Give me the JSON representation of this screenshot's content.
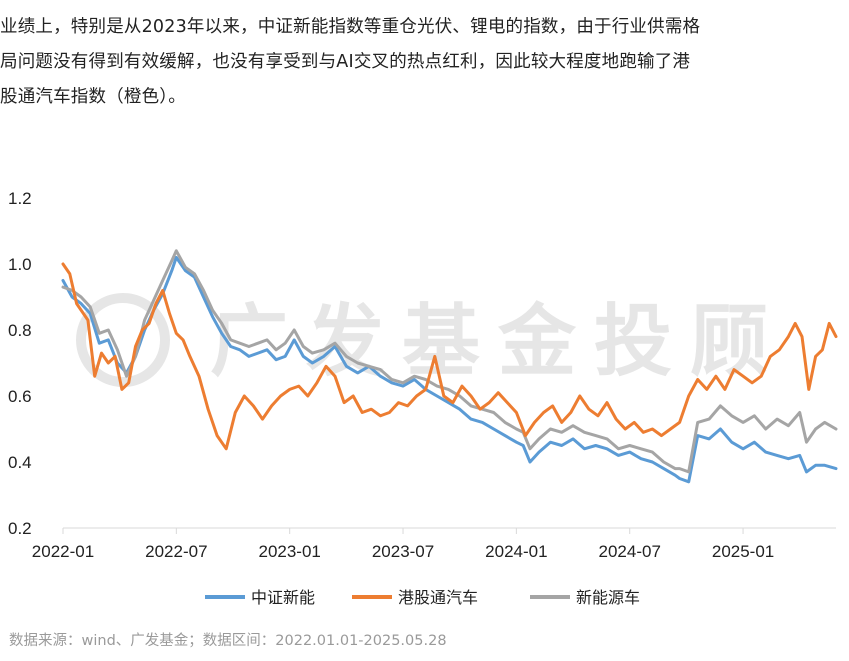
{
  "intro": {
    "lines": [
      "业绩上，特别是从2023年以来，中证新能指数等重仓光伏、锂电的指数，由于行业供需格",
      "局问题没有得到有效缓解，也没有享受到与AI交叉的热点红利，因此较大程度地跑输了港",
      "股通汽车指数（橙色）。"
    ]
  },
  "watermark": "广发基金投顾",
  "source": "数据来源：wind、广发基金；数据区间：2022.01.01-2025.05.28",
  "chart_data": {
    "type": "line",
    "ylim": [
      0.2,
      1.2
    ],
    "yticks": [
      "1.2",
      "1.0",
      "0.8",
      "0.6",
      "0.4",
      "0.2"
    ],
    "ytick_values": [
      1.2,
      1.0,
      0.8,
      0.6,
      0.4,
      0.2
    ],
    "xticks": [
      "2022-01",
      "2022-07",
      "2023-01",
      "2023-07",
      "2024-01",
      "2024-07",
      "2025-01"
    ],
    "xtick_values": [
      2022.0,
      2022.5,
      2023.0,
      2023.5,
      2024.0,
      2024.5,
      2025.0
    ],
    "xlim": [
      2022.0,
      2025.41
    ],
    "grid": false,
    "legend_position": "bottom",
    "series": [
      {
        "name": "中证新能",
        "color": "#5b9bd5",
        "x": [
          2022.0,
          2022.04,
          2022.08,
          2022.12,
          2022.16,
          2022.2,
          2022.24,
          2022.28,
          2022.32,
          2022.36,
          2022.4,
          2022.44,
          2022.48,
          2022.5,
          2022.54,
          2022.58,
          2022.62,
          2022.66,
          2022.7,
          2022.74,
          2022.78,
          2022.82,
          2022.86,
          2022.9,
          2022.94,
          2022.98,
          2023.02,
          2023.06,
          2023.1,
          2023.15,
          2023.2,
          2023.25,
          2023.3,
          2023.35,
          2023.4,
          2023.45,
          2023.5,
          2023.55,
          2023.6,
          2023.65,
          2023.7,
          2023.75,
          2023.8,
          2023.85,
          2023.9,
          2023.95,
          2024.0,
          2024.03,
          2024.06,
          2024.1,
          2024.15,
          2024.2,
          2024.25,
          2024.3,
          2024.35,
          2024.4,
          2024.45,
          2024.5,
          2024.55,
          2024.6,
          2024.65,
          2024.7,
          2024.72,
          2024.76,
          2024.8,
          2024.85,
          2024.9,
          2024.95,
          2025.0,
          2025.05,
          2025.1,
          2025.15,
          2025.2,
          2025.25,
          2025.28,
          2025.32,
          2025.36,
          2025.41
        ],
        "y": [
          0.95,
          0.9,
          0.88,
          0.85,
          0.76,
          0.77,
          0.7,
          0.67,
          0.72,
          0.8,
          0.86,
          0.91,
          0.98,
          1.02,
          0.98,
          0.96,
          0.9,
          0.84,
          0.79,
          0.75,
          0.74,
          0.72,
          0.73,
          0.74,
          0.71,
          0.72,
          0.77,
          0.72,
          0.7,
          0.72,
          0.75,
          0.69,
          0.67,
          0.69,
          0.66,
          0.64,
          0.63,
          0.65,
          0.62,
          0.6,
          0.58,
          0.56,
          0.53,
          0.52,
          0.5,
          0.48,
          0.46,
          0.45,
          0.4,
          0.43,
          0.46,
          0.45,
          0.47,
          0.44,
          0.45,
          0.44,
          0.42,
          0.43,
          0.41,
          0.4,
          0.38,
          0.36,
          0.35,
          0.34,
          0.48,
          0.47,
          0.5,
          0.46,
          0.44,
          0.46,
          0.43,
          0.42,
          0.41,
          0.42,
          0.37,
          0.39,
          0.39,
          0.38
        ]
      },
      {
        "name": "港股通汽车",
        "color": "#ed7d31",
        "x": [
          2022.0,
          2022.03,
          2022.06,
          2022.09,
          2022.11,
          2022.14,
          2022.17,
          2022.2,
          2022.23,
          2022.26,
          2022.29,
          2022.32,
          2022.35,
          2022.38,
          2022.41,
          2022.44,
          2022.47,
          2022.5,
          2022.53,
          2022.56,
          2022.6,
          2022.64,
          2022.68,
          2022.72,
          2022.76,
          2022.8,
          2022.84,
          2022.88,
          2022.92,
          2022.96,
          2023.0,
          2023.04,
          2023.08,
          2023.12,
          2023.16,
          2023.2,
          2023.24,
          2023.28,
          2023.32,
          2023.36,
          2023.4,
          2023.44,
          2023.48,
          2023.52,
          2023.56,
          2023.6,
          2023.64,
          2023.68,
          2023.72,
          2023.76,
          2023.8,
          2023.84,
          2023.88,
          2023.92,
          2023.96,
          2024.0,
          2024.04,
          2024.08,
          2024.12,
          2024.16,
          2024.2,
          2024.24,
          2024.28,
          2024.32,
          2024.36,
          2024.4,
          2024.44,
          2024.48,
          2024.52,
          2024.56,
          2024.6,
          2024.64,
          2024.68,
          2024.72,
          2024.76,
          2024.8,
          2024.84,
          2024.88,
          2024.92,
          2024.96,
          2025.0,
          2025.04,
          2025.08,
          2025.12,
          2025.16,
          2025.2,
          2025.23,
          2025.26,
          2025.29,
          2025.32,
          2025.35,
          2025.38,
          2025.41
        ],
        "y": [
          1.0,
          0.97,
          0.88,
          0.85,
          0.83,
          0.66,
          0.73,
          0.7,
          0.72,
          0.62,
          0.64,
          0.75,
          0.8,
          0.82,
          0.88,
          0.92,
          0.85,
          0.79,
          0.77,
          0.72,
          0.66,
          0.56,
          0.48,
          0.44,
          0.55,
          0.6,
          0.57,
          0.53,
          0.57,
          0.6,
          0.62,
          0.63,
          0.6,
          0.64,
          0.69,
          0.66,
          0.58,
          0.6,
          0.55,
          0.56,
          0.54,
          0.55,
          0.58,
          0.57,
          0.6,
          0.62,
          0.72,
          0.6,
          0.58,
          0.63,
          0.6,
          0.56,
          0.58,
          0.61,
          0.58,
          0.55,
          0.48,
          0.52,
          0.55,
          0.57,
          0.52,
          0.55,
          0.6,
          0.56,
          0.54,
          0.58,
          0.53,
          0.5,
          0.52,
          0.49,
          0.5,
          0.48,
          0.5,
          0.52,
          0.6,
          0.65,
          0.62,
          0.66,
          0.62,
          0.68,
          0.66,
          0.64,
          0.66,
          0.72,
          0.74,
          0.78,
          0.82,
          0.78,
          0.62,
          0.72,
          0.74,
          0.82,
          0.78
        ]
      },
      {
        "name": "新能源车",
        "color": "#a5a5a5",
        "x": [
          2022.0,
          2022.04,
          2022.08,
          2022.12,
          2022.16,
          2022.2,
          2022.24,
          2022.28,
          2022.32,
          2022.36,
          2022.4,
          2022.44,
          2022.48,
          2022.5,
          2022.54,
          2022.58,
          2022.62,
          2022.66,
          2022.7,
          2022.74,
          2022.78,
          2022.82,
          2022.86,
          2022.9,
          2022.94,
          2022.98,
          2023.02,
          2023.06,
          2023.1,
          2023.15,
          2023.2,
          2023.25,
          2023.3,
          2023.35,
          2023.4,
          2023.45,
          2023.5,
          2023.55,
          2023.6,
          2023.65,
          2023.7,
          2023.75,
          2023.8,
          2023.85,
          2023.9,
          2023.95,
          2024.0,
          2024.03,
          2024.06,
          2024.1,
          2024.15,
          2024.2,
          2024.25,
          2024.3,
          2024.35,
          2024.4,
          2024.45,
          2024.5,
          2024.55,
          2024.6,
          2024.65,
          2024.7,
          2024.72,
          2024.76,
          2024.8,
          2024.85,
          2024.9,
          2024.95,
          2025.0,
          2025.05,
          2025.1,
          2025.15,
          2025.2,
          2025.25,
          2025.28,
          2025.32,
          2025.36,
          2025.41
        ],
        "y": [
          0.93,
          0.92,
          0.9,
          0.87,
          0.79,
          0.8,
          0.74,
          0.66,
          0.72,
          0.83,
          0.89,
          0.95,
          1.01,
          1.04,
          0.99,
          0.97,
          0.92,
          0.86,
          0.82,
          0.77,
          0.76,
          0.75,
          0.76,
          0.77,
          0.74,
          0.76,
          0.8,
          0.75,
          0.73,
          0.74,
          0.76,
          0.72,
          0.7,
          0.69,
          0.68,
          0.65,
          0.64,
          0.66,
          0.65,
          0.63,
          0.62,
          0.6,
          0.57,
          0.56,
          0.55,
          0.52,
          0.5,
          0.49,
          0.44,
          0.47,
          0.5,
          0.49,
          0.51,
          0.49,
          0.48,
          0.47,
          0.44,
          0.45,
          0.44,
          0.43,
          0.4,
          0.38,
          0.38,
          0.37,
          0.52,
          0.53,
          0.57,
          0.54,
          0.52,
          0.54,
          0.5,
          0.53,
          0.51,
          0.55,
          0.46,
          0.5,
          0.52,
          0.5
        ]
      }
    ]
  }
}
